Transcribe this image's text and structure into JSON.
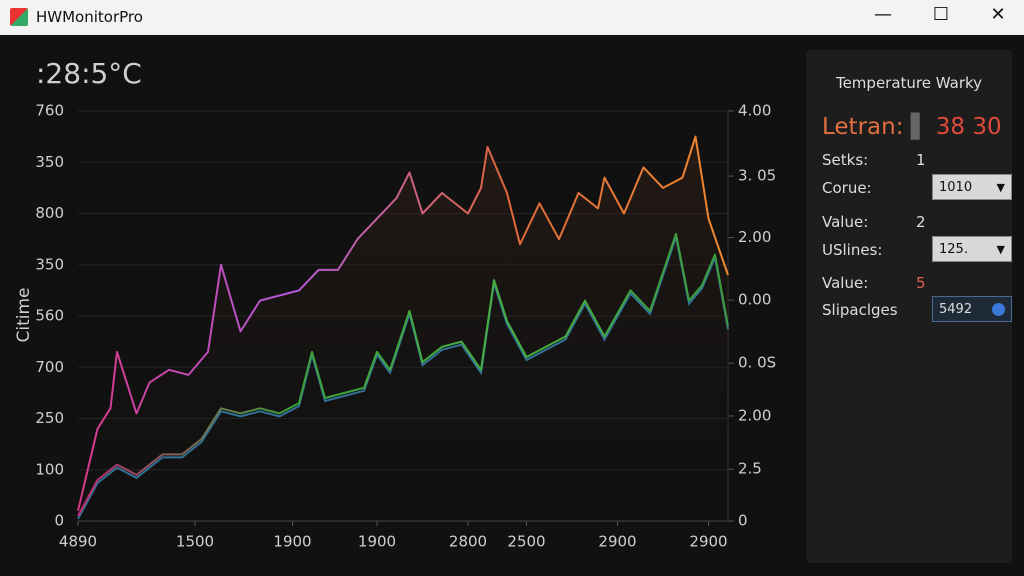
{
  "window": {
    "title": "HWMonitorPro"
  },
  "readout": ":28:5°C",
  "chart_data": {
    "type": "line",
    "ylabel": "Citime",
    "ylim": [
      0,
      8
    ],
    "xlim": [
      0,
      100
    ],
    "y2lim": [
      0,
      8
    ],
    "yticks": [
      {
        "value": 8,
        "label": "760"
      },
      {
        "value": 7,
        "label": "350"
      },
      {
        "value": 6,
        "label": "800"
      },
      {
        "value": 5,
        "label": "350"
      },
      {
        "value": 4,
        "label": "560"
      },
      {
        "value": 3,
        "label": "700"
      },
      {
        "value": 2,
        "label": "250"
      },
      {
        "value": 1,
        "label": "100"
      },
      0
    ],
    "y2ticks": [
      {
        "value": 8,
        "label": "4.00"
      },
      {
        "value": 6.73,
        "label": "3. 05"
      },
      {
        "value": 5.53,
        "label": "2.00"
      },
      {
        "value": 4.31,
        "label": "0.00"
      },
      {
        "value": 3.08,
        "label": "0. 0S"
      },
      {
        "value": 2.05,
        "label": "2.00"
      },
      {
        "value": 1.01,
        "label": "2.5"
      },
      0
    ],
    "xticks": [
      {
        "value": 0,
        "label": "4890"
      },
      {
        "value": 18,
        "label": "1500"
      },
      {
        "value": 33,
        "label": "1900"
      },
      {
        "value": 46,
        "label": "1900"
      },
      {
        "value": 60,
        "label": "2800"
      },
      {
        "value": 69,
        "label": "2500"
      },
      {
        "value": 83,
        "label": "2900"
      },
      {
        "value": 97,
        "label": "2900"
      }
    ],
    "series": [
      {
        "colors": [
          "#d8388a",
          "#b05ad8",
          "#e0683a",
          "#f08a30"
        ],
        "x": [
          0,
          3,
          5,
          6,
          9,
          11,
          14,
          17,
          20,
          22,
          25,
          28,
          31,
          34,
          37,
          40,
          43,
          46,
          49,
          51,
          53,
          56,
          60,
          62,
          63,
          66,
          68,
          71,
          74,
          77,
          80,
          81,
          84,
          87,
          90,
          93,
          95,
          97,
          100
        ],
        "values": [
          0.2,
          1.8,
          2.2,
          3.3,
          2.1,
          2.7,
          2.95,
          2.85,
          3.3,
          5.0,
          3.7,
          4.3,
          4.4,
          4.5,
          4.9,
          4.9,
          5.5,
          5.9,
          6.3,
          6.8,
          6.0,
          6.4,
          6.0,
          6.5,
          7.3,
          6.4,
          5.4,
          6.2,
          5.5,
          6.4,
          6.1,
          6.7,
          6.0,
          6.9,
          6.5,
          6.7,
          7.5,
          5.9,
          4.8
        ]
      },
      {
        "colors": [
          "#c02a70",
          "#3aa23a",
          "#48b040",
          "#3a9a3a"
        ],
        "x": [
          0,
          3,
          6,
          9,
          13,
          16,
          19,
          22,
          25,
          28,
          31,
          34,
          36,
          38,
          41,
          44,
          46,
          48,
          51,
          53,
          56,
          59,
          62,
          64,
          66,
          69,
          72,
          75,
          78,
          81,
          85,
          88,
          92,
          94,
          96,
          98,
          100
        ],
        "values": [
          0.1,
          0.8,
          1.1,
          0.9,
          1.3,
          1.3,
          1.6,
          2.2,
          2.1,
          2.2,
          2.1,
          2.3,
          3.3,
          2.4,
          2.5,
          2.6,
          3.3,
          2.95,
          4.1,
          3.1,
          3.4,
          3.5,
          2.95,
          4.7,
          3.9,
          3.2,
          3.4,
          3.6,
          4.3,
          3.6,
          4.5,
          4.1,
          5.6,
          4.3,
          4.6,
          5.2,
          3.8
        ]
      }
    ]
  },
  "panel": {
    "title": "Temperature Warky",
    "label": "Letran:",
    "value": "38 30",
    "rows": [
      {
        "label": "Setks:",
        "value": "1"
      },
      {
        "label": "Corue:",
        "select": "1010"
      },
      {
        "label": "Value:",
        "value": "2"
      },
      {
        "label": "USlines:",
        "select": "125."
      },
      {
        "label": "Value:",
        "value": "5"
      },
      {
        "label": "Slipaclges",
        "input": "5492"
      }
    ]
  }
}
